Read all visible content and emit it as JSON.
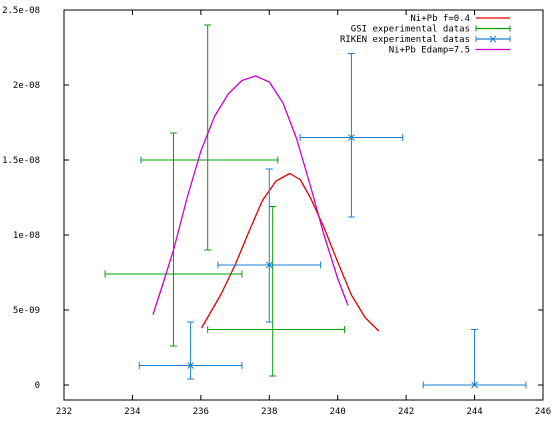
{
  "chart_data": {
    "type": "scatter",
    "title": "",
    "xlabel": "",
    "ylabel": "",
    "xlim": [
      232,
      246
    ],
    "ylim": [
      -1e-09,
      2.5e-08
    ],
    "grid": false,
    "legend_position": "top-right",
    "x_ticks": [
      {
        "value": 232,
        "label": "232"
      },
      {
        "value": 234,
        "label": "234"
      },
      {
        "value": 236,
        "label": "236"
      },
      {
        "value": 238,
        "label": "238"
      },
      {
        "value": 240,
        "label": "240"
      },
      {
        "value": 242,
        "label": "242"
      },
      {
        "value": 244,
        "label": "244"
      },
      {
        "value": 246,
        "label": "246"
      }
    ],
    "y_ticks": [
      {
        "value": 0,
        "label": "0"
      },
      {
        "value": 5e-09,
        "label": "5e-09"
      },
      {
        "value": 1e-08,
        "label": "1e-08"
      },
      {
        "value": 1.5e-08,
        "label": "1.5e-08"
      },
      {
        "value": 2e-08,
        "label": "2e-08"
      },
      {
        "value": 2.5e-08,
        "label": "2.5e-08"
      }
    ],
    "series": [
      {
        "name": "Ni+Pb f=0.4",
        "kind": "line",
        "color": "#e00000",
        "points": [
          [
            236.02,
            3.8e-09
          ],
          [
            236.3,
            4.9e-09
          ],
          [
            236.6,
            6.1e-09
          ],
          [
            237.0,
            8e-09
          ],
          [
            237.4,
            1.02e-08
          ],
          [
            237.8,
            1.23e-08
          ],
          [
            238.2,
            1.36e-08
          ],
          [
            238.6,
            1.41e-08
          ],
          [
            238.9,
            1.37e-08
          ],
          [
            239.2,
            1.25e-08
          ],
          [
            239.6,
            1.05e-08
          ],
          [
            240.0,
            8.2e-09
          ],
          [
            240.4,
            6e-09
          ],
          [
            240.8,
            4.5e-09
          ],
          [
            241.2,
            3.6e-09
          ]
        ]
      },
      {
        "name": "GSI experimental datas",
        "kind": "errorbar",
        "color": "#00a000",
        "points": [
          {
            "x": 235.2,
            "y": 7.4e-09,
            "xerr": [
              2.0,
              2.0
            ],
            "yerr": [
              4.8e-09,
              9.4e-09
            ]
          },
          {
            "x": 235.3,
            "y": 1.5e-08,
            "xerr": [
              1.05,
              2.95
            ],
            "yerr": [
              0,
              0
            ]
          },
          {
            "x": 236.2,
            "y": 1.5e-08,
            "xerr": [
              0,
              0
            ],
            "yerr": [
              6e-09,
              9e-09
            ]
          },
          {
            "x": 238.1,
            "y": 3.7e-09,
            "xerr": [
              1.9,
              2.1
            ],
            "yerr": [
              3.1e-09,
              8.2e-09
            ]
          }
        ]
      },
      {
        "name": "RIKEN experimental datas",
        "kind": "errorbar",
        "color": "#1a7fd4",
        "points": [
          {
            "x": 235.7,
            "y": 1.3e-09,
            "xerr": [
              1.5,
              1.5
            ],
            "yerr": [
              9e-10,
              2.9e-09
            ]
          },
          {
            "x": 238.0,
            "y": 8e-09,
            "xerr": [
              1.5,
              1.5
            ],
            "yerr": [
              3.8e-09,
              6.4e-09
            ]
          },
          {
            "x": 240.4,
            "y": 1.65e-08,
            "xerr": [
              1.5,
              1.5
            ],
            "yerr": [
              5.3e-09,
              5.6e-09
            ]
          },
          {
            "x": 244.0,
            "y": 0.0,
            "xerr": [
              1.5,
              1.5
            ],
            "yerr": [
              0,
              3.7e-09
            ]
          }
        ]
      },
      {
        "name": "Ni+Pb Edamp=7.5",
        "kind": "line",
        "color": "#cc00cc",
        "points": [
          [
            234.6,
            4.7e-09
          ],
          [
            234.9,
            6.8e-09
          ],
          [
            235.2,
            9e-09
          ],
          [
            235.6,
            1.25e-08
          ],
          [
            236.0,
            1.56e-08
          ],
          [
            236.4,
            1.79e-08
          ],
          [
            236.8,
            1.94e-08
          ],
          [
            237.2,
            2.03e-08
          ],
          [
            237.6,
            2.06e-08
          ],
          [
            238.0,
            2.02e-08
          ],
          [
            238.4,
            1.88e-08
          ],
          [
            238.8,
            1.64e-08
          ],
          [
            239.2,
            1.33e-08
          ],
          [
            239.6,
            1e-08
          ],
          [
            240.0,
            7.1e-09
          ],
          [
            240.3,
            5.3e-09
          ]
        ]
      }
    ]
  }
}
